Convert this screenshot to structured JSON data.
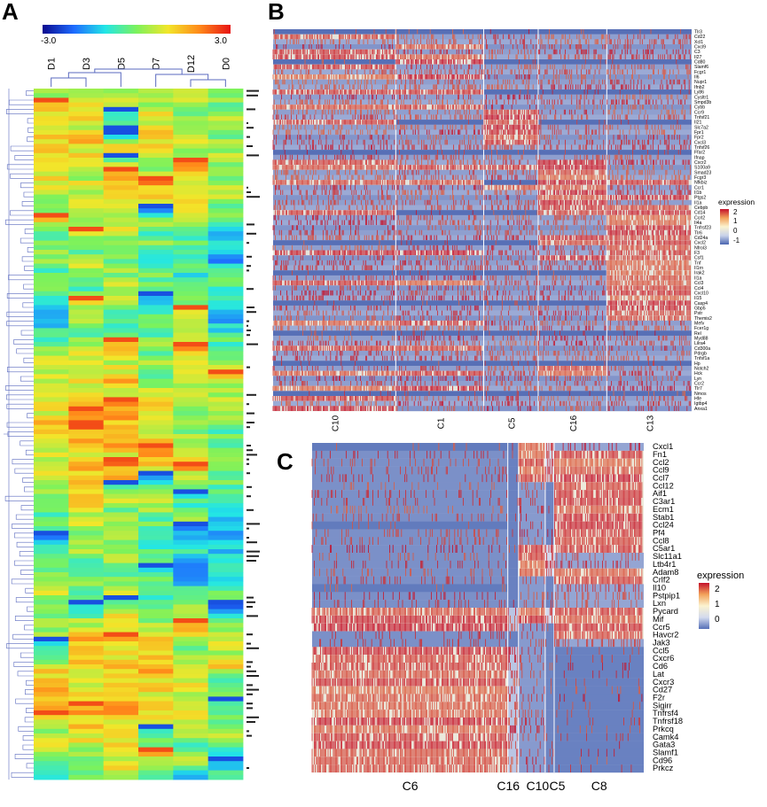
{
  "panels": {
    "a": {
      "letter": "A",
      "colorbar": {
        "min_label": "-3.0",
        "max_label": "3.0",
        "colors": [
          "#0a0a8f",
          "#1e6bff",
          "#22e6e6",
          "#7cf25c",
          "#f2e62a",
          "#ff8a1a",
          "#e81414"
        ]
      },
      "columns": [
        "D1",
        "D3",
        "D5",
        "D7",
        "D12",
        "D0"
      ]
    },
    "b": {
      "letter": "B",
      "genes": [
        "Tlr3",
        "Cd22",
        "Xcl1",
        "Cxcl9",
        "C3",
        "Il27",
        "Cd80",
        "Slamf6",
        "Fcgr1",
        "Il6",
        "Nupr1",
        "Ifnb2",
        "Ly86",
        "Cysltr1",
        "Smpd3b",
        "Cybb",
        "Ccr9",
        "Tnfsf21",
        "Il21",
        "Slc7a2",
        "Fpr1",
        "Fpr2",
        "Cxcl3",
        "Tnfsf26",
        "Ffar2",
        "Ifnap",
        "Cxcr2",
        "S100a9",
        "Smad23",
        "Fcgr3",
        "Nfkbiz",
        "Ccr1",
        "Il1b",
        "Ptgs2",
        "Il1a",
        "Cebpb",
        "Cd14",
        "Ccrl2",
        "Il4a",
        "Tnfrsf23",
        "Tlr6",
        "Cd24a",
        "Cxcl2",
        "Nfrol3",
        "F3",
        "Csf1",
        "Tnf",
        "Il1rn",
        "Irak2",
        "Il1a",
        "Ccl3",
        "Ccl4",
        "Cxcl10",
        "Il15",
        "Casp4",
        "Gbp5",
        "Pstr",
        "Themis2",
        "Mefv",
        "Fcer1g",
        "Rel",
        "Myd88",
        "Lilra4",
        "Cd300a",
        "Pdrgb",
        "Tnfsf1a",
        "Hp",
        "Notch2",
        "Hck",
        "Lyn",
        "Ccr2",
        "Tlr7",
        "Nmos",
        "Hfe",
        "Igtbp4",
        "Anxa1"
      ],
      "clusters": [
        "C10",
        "C1",
        "C5",
        "C16",
        "C13"
      ],
      "legend": {
        "title": "expression",
        "ticks": [
          "2",
          "1",
          "0",
          "-1"
        ]
      }
    },
    "c": {
      "letter": "C",
      "genes": [
        "Cxcl1",
        "Fn1",
        "Ccl2",
        "Ccl9",
        "Ccl7",
        "Ccl12",
        "Aif1",
        "C3ar1",
        "Ecm1",
        "Stab1",
        "Ccl24",
        "Pf4",
        "Ccl8",
        "C5ar1",
        "Slc11a1",
        "Ltb4r1",
        "Adam8",
        "Crlf2",
        "Il10",
        "Pstpip1",
        "Lxn",
        "Pycard",
        "Mif",
        "Ccr5",
        "Havcr2",
        "Jak3",
        "Ccl5",
        "Cxcr6",
        "Cd6",
        "Lat",
        "Cxcr3",
        "Cd27",
        "F2r",
        "Sigirr",
        "Tnfrsf4",
        "Tnfrsf18",
        "Prkcq",
        "Camk4",
        "Gata3",
        "Slamf1",
        "Cd96",
        "Prkcz"
      ],
      "clusters": [
        "C6",
        "C16",
        "C10",
        "C5",
        "C8"
      ],
      "legend": {
        "title": "expression",
        "ticks": [
          "2",
          "1",
          "0"
        ]
      }
    }
  },
  "chart_data": [
    {
      "type": "heatmap",
      "panel": "A",
      "columns": [
        "D1",
        "D3",
        "D5",
        "D7",
        "D12",
        "D0"
      ],
      "color_scale": {
        "min": -3.0,
        "max": 3.0
      },
      "row_count": 150,
      "note_values": "per-row values are not printed; they are conveyed only by colour"
    },
    {
      "type": "heatmap",
      "panel": "B",
      "rows": 76,
      "clusters": [
        "C10",
        "C1",
        "C5",
        "C16",
        "C13"
      ],
      "color_scale": {
        "min": -1,
        "max": 2,
        "ticks": [
          2,
          1,
          0,
          -1
        ]
      }
    },
    {
      "type": "heatmap",
      "panel": "C",
      "rows": 42,
      "clusters": [
        "C6",
        "C16",
        "C10",
        "C5",
        "C8"
      ],
      "color_scale": {
        "min": -0.5,
        "max": 2.3,
        "ticks": [
          2,
          1,
          0
        ]
      }
    }
  ]
}
